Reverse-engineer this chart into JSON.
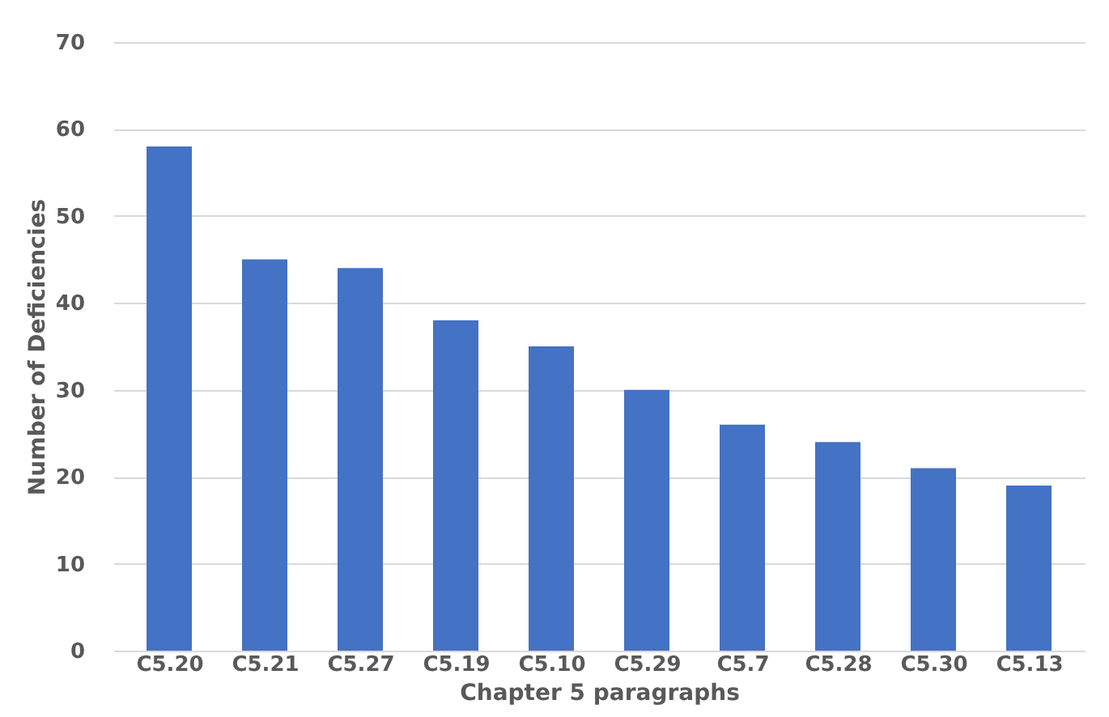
{
  "chart_data": {
    "type": "bar",
    "xlabel": "Chapter 5 paragraphs",
    "ylabel": "Number of Deficiencies",
    "categories": [
      "C5.20",
      "C5.21",
      "C5.27",
      "C5.19",
      "C5.10",
      "C5.29",
      "C5.7",
      "C5.28",
      "C5.30",
      "C5.13"
    ],
    "values": [
      58,
      45,
      44,
      38,
      35,
      30,
      26,
      24,
      21,
      19
    ],
    "color": "#4472c4",
    "ylim": [
      0,
      70
    ],
    "yticks": [
      0,
      10,
      20,
      30,
      40,
      50,
      60,
      70
    ],
    "grid": "y"
  }
}
